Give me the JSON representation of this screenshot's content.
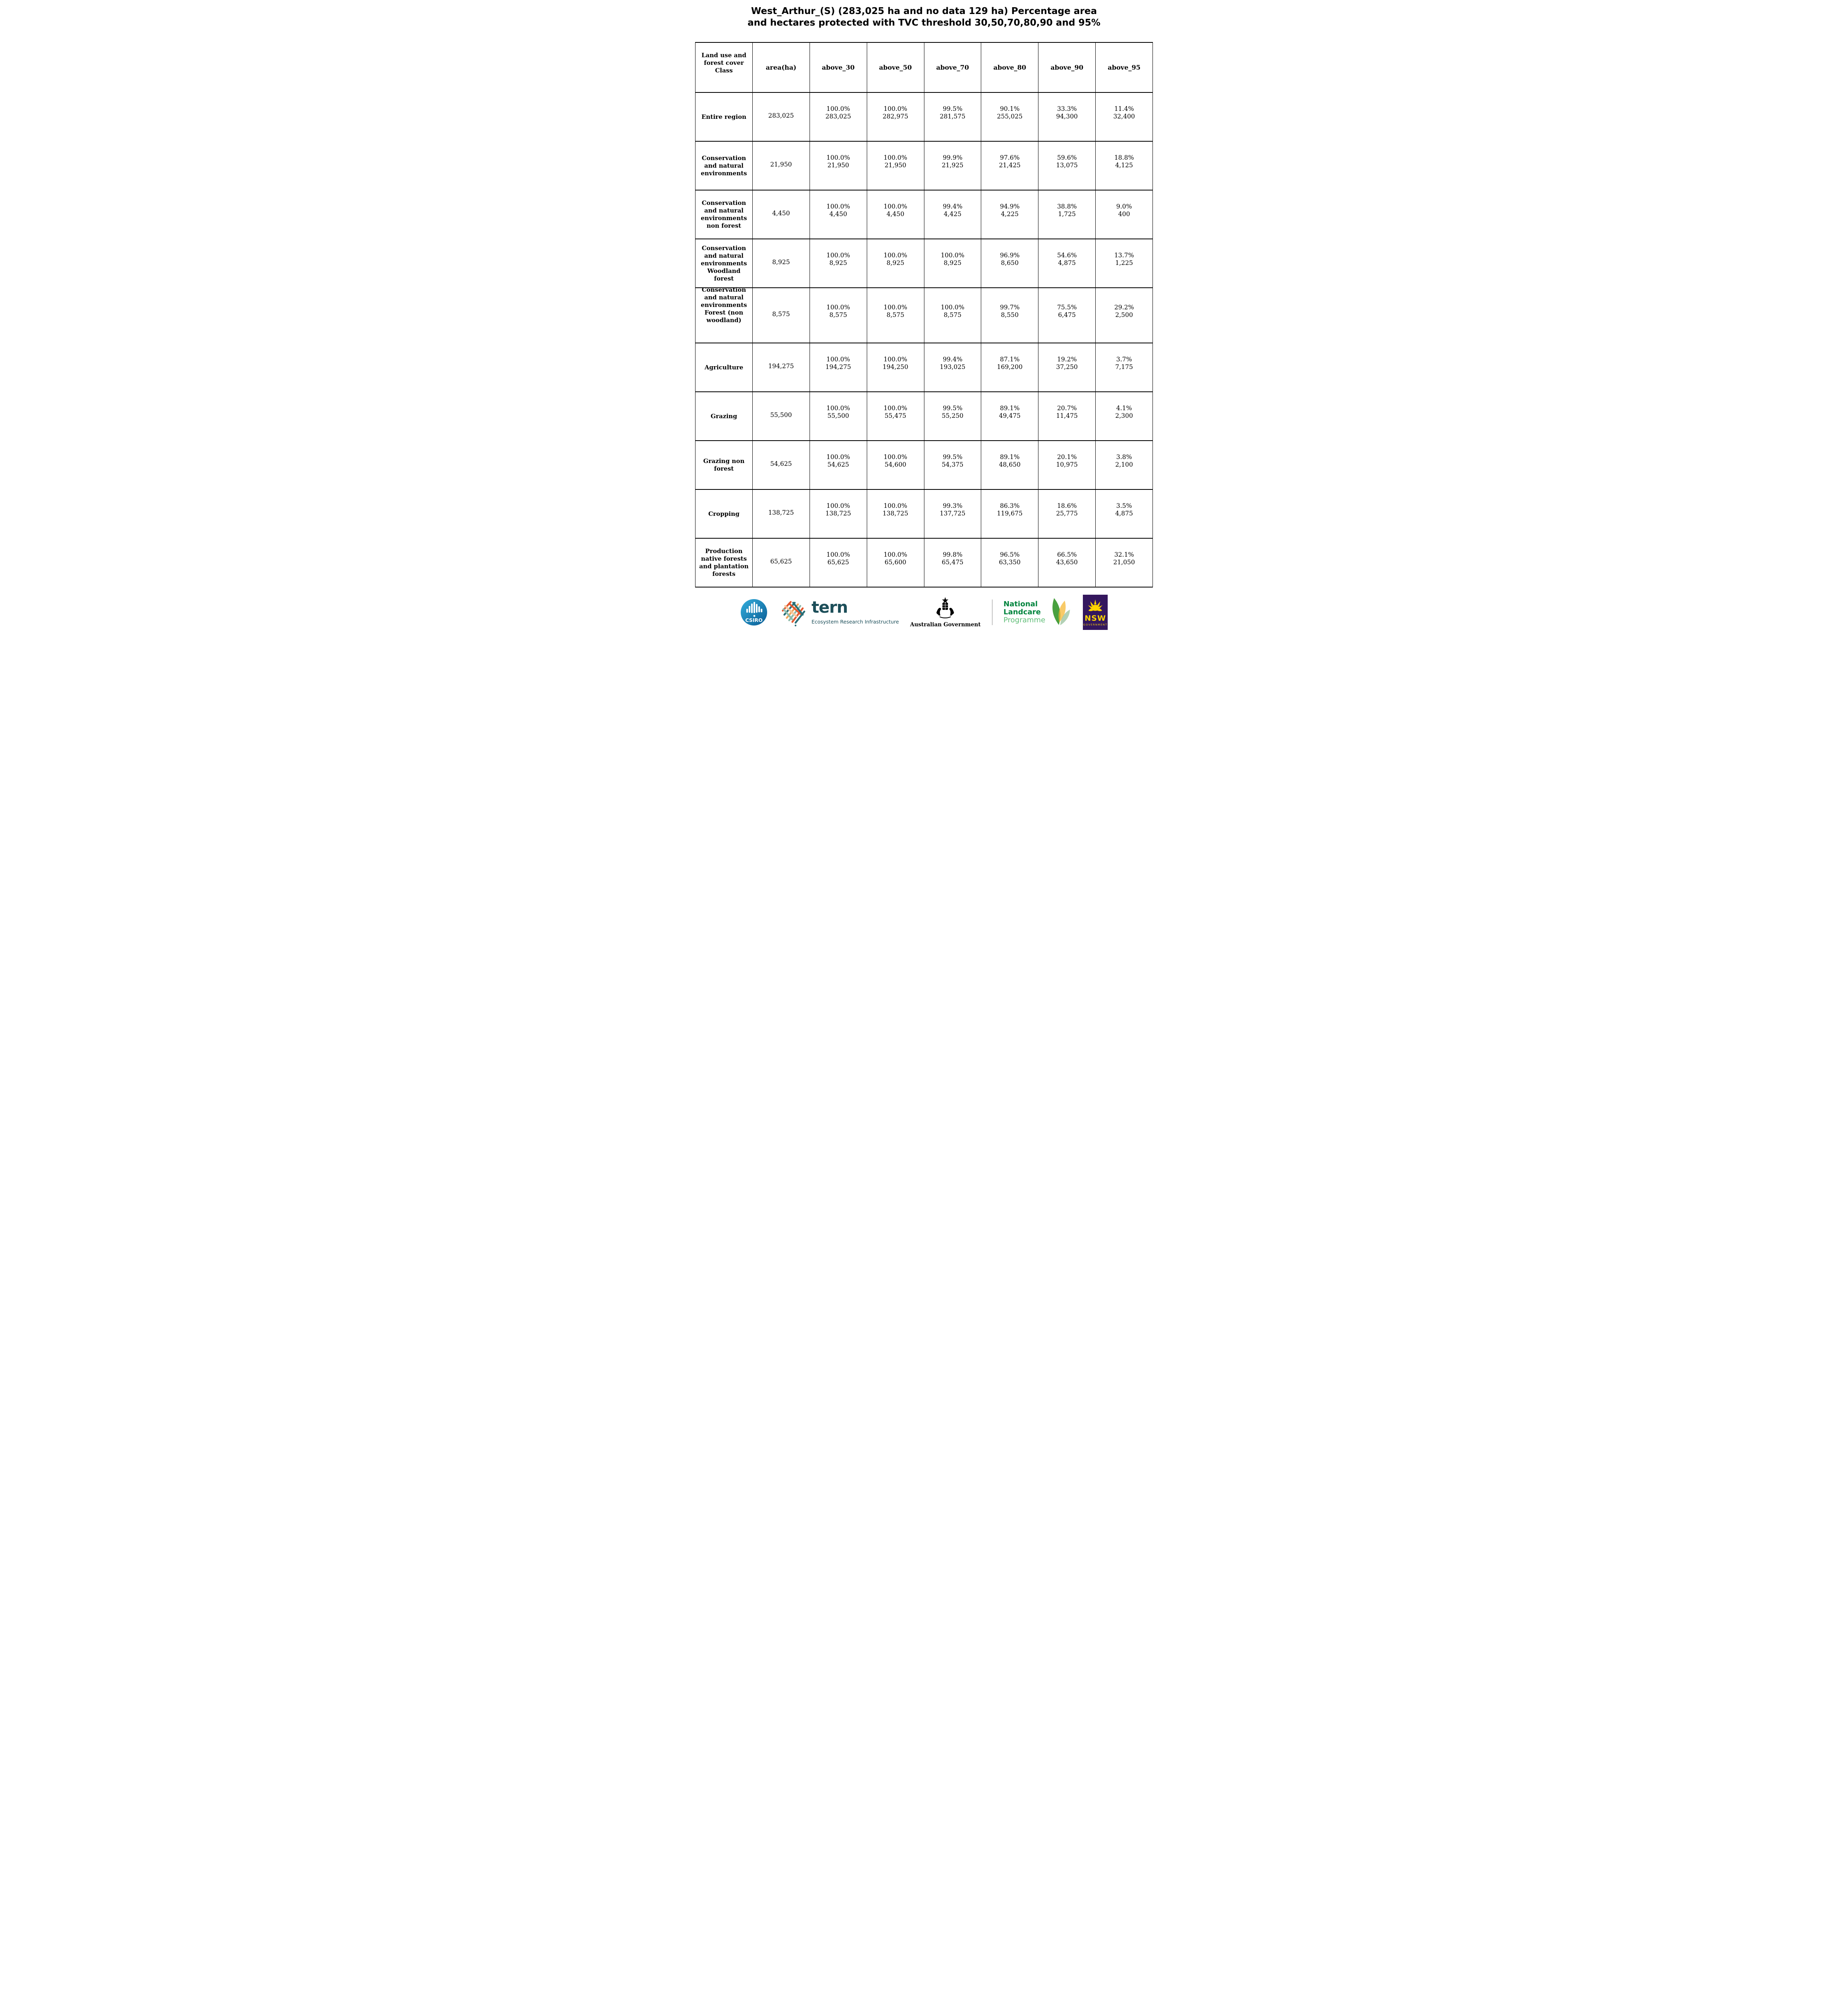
{
  "title": "West_Arthur_(S) (283,025 ha and no data 129 ha) Percentage area and hectares protected with TVC threshold 30,50,70,80,90 and 95%",
  "table": {
    "columns": [
      "Land use and forest cover Class",
      "area(ha)",
      "above_30",
      "above_50",
      "above_70",
      "above_80",
      "above_90",
      "above_95"
    ],
    "rows": [
      {
        "label": "Entire region",
        "area": "283,025",
        "cells": [
          [
            "100.0%",
            "283,025"
          ],
          [
            "100.0%",
            "282,975"
          ],
          [
            "99.5%",
            "281,575"
          ],
          [
            "90.1%",
            "255,025"
          ],
          [
            "33.3%",
            "94,300"
          ],
          [
            "11.4%",
            "32,400"
          ]
        ]
      },
      {
        "label": "Conservation and natural environments",
        "area": "21,950",
        "cells": [
          [
            "100.0%",
            "21,950"
          ],
          [
            "100.0%",
            "21,950"
          ],
          [
            "99.9%",
            "21,925"
          ],
          [
            "97.6%",
            "21,425"
          ],
          [
            "59.6%",
            "13,075"
          ],
          [
            "18.8%",
            "4,125"
          ]
        ]
      },
      {
        "label": "Conservation and natural environments non forest",
        "area": "4,450",
        "cells": [
          [
            "100.0%",
            "4,450"
          ],
          [
            "100.0%",
            "4,450"
          ],
          [
            "99.4%",
            "4,425"
          ],
          [
            "94.9%",
            "4,225"
          ],
          [
            "38.8%",
            "1,725"
          ],
          [
            "9.0%",
            "400"
          ]
        ]
      },
      {
        "label": "Conservation and natural environments Woodland forest",
        "area": "8,925",
        "cells": [
          [
            "100.0%",
            "8,925"
          ],
          [
            "100.0%",
            "8,925"
          ],
          [
            "100.0%",
            "8,925"
          ],
          [
            "96.9%",
            "8,650"
          ],
          [
            "54.6%",
            "4,875"
          ],
          [
            "13.7%",
            "1,225"
          ]
        ]
      },
      {
        "label": "Conservation and natural environments Forest (non woodland)",
        "area": "8,575",
        "cells": [
          [
            "100.0%",
            "8,575"
          ],
          [
            "100.0%",
            "8,575"
          ],
          [
            "100.0%",
            "8,575"
          ],
          [
            "99.7%",
            "8,550"
          ],
          [
            "75.5%",
            "6,475"
          ],
          [
            "29.2%",
            "2,500"
          ]
        ]
      },
      {
        "label": "Agriculture",
        "area": "194,275",
        "cells": [
          [
            "100.0%",
            "194,275"
          ],
          [
            "100.0%",
            "194,250"
          ],
          [
            "99.4%",
            "193,025"
          ],
          [
            "87.1%",
            "169,200"
          ],
          [
            "19.2%",
            "37,250"
          ],
          [
            "3.7%",
            "7,175"
          ]
        ]
      },
      {
        "label": "Grazing",
        "area": "55,500",
        "cells": [
          [
            "100.0%",
            "55,500"
          ],
          [
            "100.0%",
            "55,475"
          ],
          [
            "99.5%",
            "55,250"
          ],
          [
            "89.1%",
            "49,475"
          ],
          [
            "20.7%",
            "11,475"
          ],
          [
            "4.1%",
            "2,300"
          ]
        ]
      },
      {
        "label": "Grazing non forest",
        "area": "54,625",
        "cells": [
          [
            "100.0%",
            "54,625"
          ],
          [
            "100.0%",
            "54,600"
          ],
          [
            "99.5%",
            "54,375"
          ],
          [
            "89.1%",
            "48,650"
          ],
          [
            "20.1%",
            "10,975"
          ],
          [
            "3.8%",
            "2,100"
          ]
        ]
      },
      {
        "label": "Cropping",
        "area": "138,725",
        "cells": [
          [
            "100.0%",
            "138,725"
          ],
          [
            "100.0%",
            "138,725"
          ],
          [
            "99.3%",
            "137,725"
          ],
          [
            "86.3%",
            "119,675"
          ],
          [
            "18.6%",
            "25,775"
          ],
          [
            "3.5%",
            "4,875"
          ]
        ]
      },
      {
        "label": "Production native forests and plantation forests",
        "area": "65,625",
        "cells": [
          [
            "100.0%",
            "65,625"
          ],
          [
            "100.0%",
            "65,600"
          ],
          [
            "99.8%",
            "65,475"
          ],
          [
            "96.5%",
            "63,350"
          ],
          [
            "66.5%",
            "43,650"
          ],
          [
            "32.1%",
            "21,050"
          ]
        ]
      }
    ]
  },
  "footer": {
    "csiro": {
      "label": "CSIRO"
    },
    "tern": {
      "name": "tern",
      "subtitle": "Ecosystem Research Infrastructure"
    },
    "australian_government": {
      "label": "Australian Government"
    },
    "landcare": {
      "line1": "National",
      "line2": "Landcare",
      "line3": "Programme"
    },
    "nsw": {
      "name": "NSW",
      "sub": "GOVERNMENT"
    }
  },
  "colors": {
    "text": "#000000",
    "tern_teal": "#1C4E59",
    "csiro_blue_light": "#33AEDC",
    "csiro_blue_dark": "#0A5C94",
    "landcare_green": "#00843D",
    "landcare_light_green": "#5FBD77",
    "nsw_purple": "#34175E",
    "nsw_yellow": "#FFD500"
  }
}
